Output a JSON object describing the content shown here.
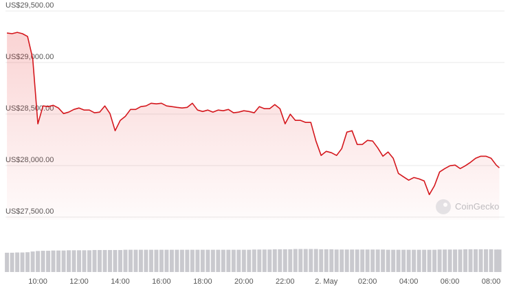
{
  "chart_data": {
    "type": "line",
    "x": [
      8.5,
      8.75,
      9,
      9.25,
      9.5,
      9.75,
      10,
      10.25,
      10.5,
      10.75,
      11,
      11.25,
      11.5,
      11.75,
      12,
      12.25,
      12.5,
      12.75,
      13,
      13.25,
      13.5,
      13.75,
      14,
      14.25,
      14.5,
      14.75,
      15,
      15.25,
      15.5,
      15.75,
      16,
      16.25,
      16.5,
      16.75,
      17,
      17.25,
      17.5,
      17.75,
      18,
      18.25,
      18.5,
      18.75,
      19,
      19.25,
      19.5,
      19.75,
      20,
      20.25,
      20.5,
      20.75,
      21,
      21.25,
      21.5,
      21.75,
      22,
      22.25,
      22.5,
      22.75,
      23,
      23.25,
      23.5,
      23.75,
      24,
      24.25,
      24.5,
      24.75,
      25,
      25.25,
      25.5,
      25.75,
      26,
      26.25,
      26.5,
      26.75,
      27,
      27.25,
      27.5,
      27.75,
      28,
      28.25,
      28.5,
      28.75,
      29,
      29.25,
      29.5,
      29.75,
      30,
      30.25,
      30.5,
      30.75,
      31,
      31.25,
      31.5,
      31.75,
      32,
      32.25,
      32.4
    ],
    "values": [
      29286,
      29280,
      29293,
      29280,
      29253,
      29039,
      28405,
      28579,
      28572,
      28585,
      28559,
      28505,
      28519,
      28545,
      28559,
      28539,
      28539,
      28512,
      28519,
      28579,
      28505,
      28338,
      28439,
      28479,
      28545,
      28545,
      28572,
      28579,
      28605,
      28599,
      28605,
      28579,
      28572,
      28565,
      28559,
      28565,
      28605,
      28539,
      28525,
      28539,
      28519,
      28539,
      28532,
      28545,
      28512,
      28519,
      28532,
      28525,
      28512,
      28572,
      28552,
      28552,
      28592,
      28552,
      28405,
      28499,
      28439,
      28439,
      28419,
      28419,
      28238,
      28098,
      28138,
      28125,
      28098,
      28165,
      28325,
      28338,
      28205,
      28205,
      28245,
      28238,
      28171,
      28091,
      28131,
      28071,
      27924,
      27891,
      27858,
      27884,
      27871,
      27851,
      27718,
      27804,
      27938,
      27971,
      27998,
      28005,
      27971,
      27998,
      28031,
      28071,
      28091,
      28091,
      28071,
      28005,
      27978
    ],
    "color": "#d4161c",
    "volume": [
      78,
      78,
      79,
      79,
      80,
      83,
      85,
      86,
      86,
      87,
      87,
      87,
      88,
      88,
      88,
      88,
      88,
      89,
      89,
      89,
      89,
      89,
      89,
      90,
      90,
      90,
      90,
      90,
      90,
      90,
      90,
      90,
      90,
      90,
      90,
      90,
      90,
      90,
      90,
      90,
      90,
      90,
      90,
      90,
      90,
      90,
      90,
      90,
      91,
      91,
      91,
      91,
      92,
      92,
      92,
      92,
      93,
      93,
      93,
      93,
      93,
      92,
      92,
      92,
      91,
      91,
      91,
      91,
      91,
      91,
      91,
      91,
      91,
      91,
      90,
      90,
      90,
      90,
      90,
      90,
      90,
      90,
      90,
      90,
      91,
      91,
      91,
      91,
      91,
      92,
      92,
      92,
      92,
      92,
      92,
      91,
      91
    ],
    "volume_color": "#c9c9ce",
    "vlim": [
      0,
      100
    ],
    "xlim": [
      8.43,
      32.45
    ],
    "xticks": [
      {
        "value": 10,
        "label": "10:00"
      },
      {
        "value": 12,
        "label": "12:00"
      },
      {
        "value": 14,
        "label": "14:00"
      },
      {
        "value": 16,
        "label": "16:00"
      },
      {
        "value": 18,
        "label": "18:00"
      },
      {
        "value": 20,
        "label": "20:00"
      },
      {
        "value": 22,
        "label": "22:00"
      },
      {
        "value": 24,
        "label": "2. May"
      },
      {
        "value": 26,
        "label": "02:00"
      },
      {
        "value": 28,
        "label": "04:00"
      },
      {
        "value": 30,
        "label": "06:00"
      },
      {
        "value": 32,
        "label": "08:00"
      }
    ],
    "ylim": [
      27500,
      29500
    ],
    "yticks": [
      {
        "value": 27500,
        "label": "US$27,500.00"
      },
      {
        "value": 28000,
        "label": "US$28,000.00"
      },
      {
        "value": 28500,
        "label": "US$28,500.00"
      },
      {
        "value": 29000,
        "label": "US$29,000.00"
      },
      {
        "value": 29500,
        "label": "US$29,500.00"
      }
    ],
    "grid": true,
    "watermark": "CoinGecko"
  }
}
